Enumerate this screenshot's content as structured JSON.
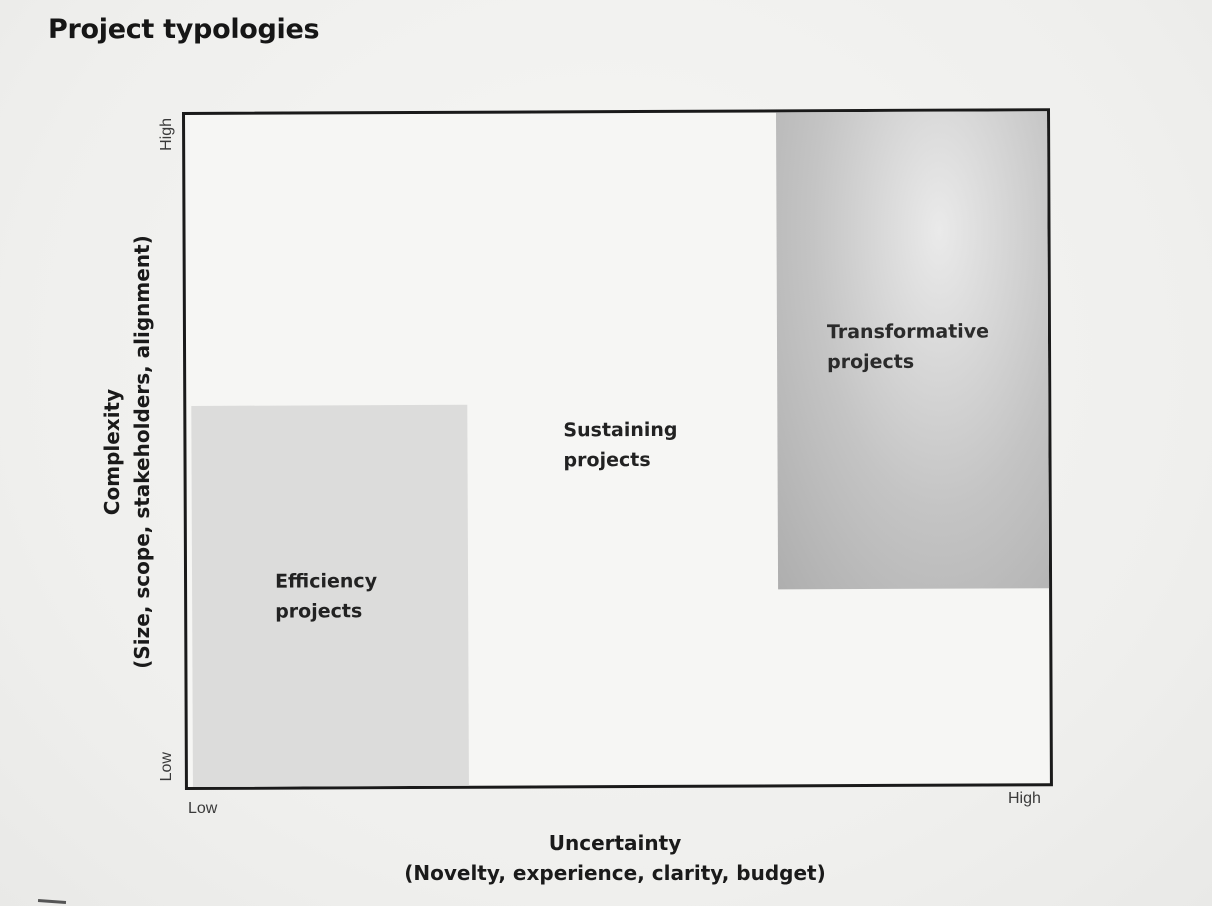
{
  "title": "Project typologies",
  "x_axis": {
    "title": "Uncertainty",
    "subtitle": "(Novelty, experience, clarity, budget)",
    "low_label": "Low",
    "high_label": "High"
  },
  "y_axis": {
    "title": "Complexity",
    "subtitle": "(Size, scope, stakeholders, alignment)",
    "low_label": "Low",
    "high_label": "High"
  },
  "regions": [
    {
      "id": "efficiency",
      "line1": "Efficiency",
      "line2": "projects",
      "shade": "#dcdcdb",
      "position": "low uncertainty, low-to-mid complexity"
    },
    {
      "id": "sustaining",
      "line1": "Sustaining",
      "line2": "projects",
      "shade": "#f6f6f4",
      "position": "middle (remaining area)"
    },
    {
      "id": "transformative",
      "line1": "Transformative",
      "line2": "projects",
      "shade": "#bdbdbd",
      "position": "high uncertainty, mid-to-high complexity"
    }
  ],
  "colors": {
    "frame": "#1a1a1a",
    "background": "#f3f3f1",
    "efficiency_fill": "#dcdcdb",
    "transformative_fill": "#bdbdbd"
  }
}
